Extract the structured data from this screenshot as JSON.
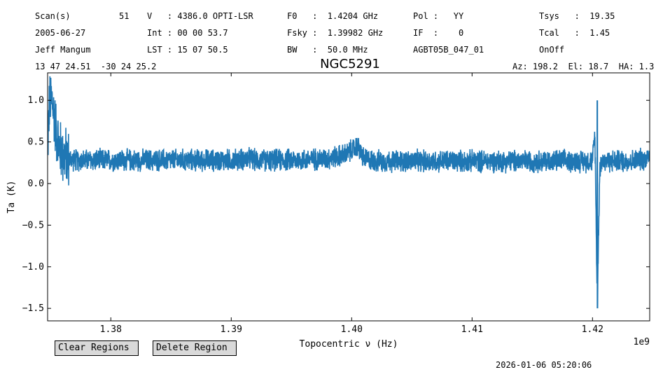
{
  "header": {
    "row1": {
      "scan_label": "Scan(s)",
      "scan_value": "51",
      "velocity": "V   : 4386.0 OPTI-LSR",
      "f0": "F0   :  1.4204 GHz",
      "pol": "Pol :   YY",
      "tsys": "Tsys   :  19.35"
    },
    "row2": {
      "date": "2005-06-27",
      "int": "Int : 00 00 53.7",
      "fsky": "Fsky :  1.39982 GHz",
      "if": "IF  :    0",
      "tcal": "Tcal   :  1.45"
    },
    "row3": {
      "observer": "Jeff Mangum",
      "lst": "LST : 15 07 50.5",
      "bw": "BW   :  50.0 MHz",
      "project": "AGBT05B_047_01",
      "proc": "OnOff"
    },
    "row4": {
      "coords": "13 47 24.51  -30 24 25.2",
      "azel": "Az: 198.2  El: 18.7  HA: 1.3"
    }
  },
  "chart_data": {
    "type": "line",
    "title": "NGC5291",
    "xlabel": "Topocentric ν (Hz)",
    "ylabel": "Ta (K)",
    "x_offset_label": "1e9",
    "xlim": [
      1.37475,
      1.42475
    ],
    "ylim": [
      -1.65,
      1.33
    ],
    "xticks": [
      1.38,
      1.39,
      1.4,
      1.41,
      1.42
    ],
    "xtick_labels": [
      "1.38",
      "1.39",
      "1.40",
      "1.41",
      "1.42"
    ],
    "yticks": [
      1.0,
      0.5,
      0.0,
      -0.5,
      -1.0,
      -1.5
    ],
    "ytick_labels": [
      "1.0",
      "0.5",
      "0.0",
      "−0.5",
      "−1.0",
      "−1.5"
    ],
    "line_color": "#1f77b4",
    "grid": false,
    "series": [
      {
        "x": [
          1.37475,
          1.3749,
          1.3751,
          1.3753,
          1.3755,
          1.3757,
          1.376,
          1.3765,
          1.377,
          1.378,
          1.38,
          1.385,
          1.39,
          1.3915,
          1.392,
          1.395,
          1.398,
          1.3995,
          1.4005,
          1.401,
          1.402,
          1.405,
          1.41,
          1.415,
          1.42,
          1.4202,
          1.4204,
          1.4206,
          1.4208,
          1.423,
          1.4245,
          1.42475
        ],
        "y": [
          0.45,
          0.95,
          1.02,
          0.8,
          0.6,
          0.45,
          0.35,
          0.3,
          0.28,
          0.28,
          0.28,
          0.28,
          0.28,
          0.3,
          0.28,
          0.28,
          0.3,
          0.35,
          0.45,
          0.3,
          0.27,
          0.27,
          0.27,
          0.27,
          0.27,
          0.6,
          -1.5,
          0.2,
          0.27,
          0.27,
          0.3,
          0.35
        ]
      }
    ]
  },
  "buttons": {
    "clear": "Clear Regions",
    "delete": "Delete Region"
  },
  "timestamp": "2026-01-06 05:20:06"
}
